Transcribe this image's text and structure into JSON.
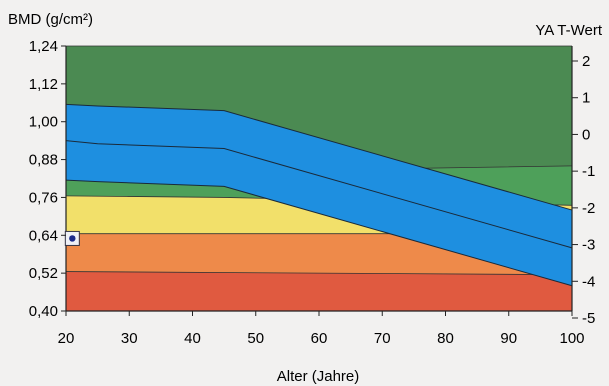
{
  "chart_data": {
    "type": "area",
    "y_label": "BMD (g/cm²)",
    "y2_label": "YA T-Wert",
    "x_label": "Alter (Jahre)",
    "x_ticks": [
      "20",
      "30",
      "40",
      "50",
      "60",
      "70",
      "80",
      "90",
      "100"
    ],
    "y_ticks": [
      "0,40",
      "0,52",
      "0,64",
      "0,76",
      "0,88",
      "1,00",
      "1,12",
      "1,24"
    ],
    "y2_ticks": [
      "-5",
      "-4",
      "-3",
      "-2",
      "-1",
      "0",
      "1",
      "2"
    ],
    "x_range": [
      20,
      100
    ],
    "y_range": [
      0.4,
      1.24
    ],
    "zones": [
      {
        "name": "red",
        "color": "#e05a40",
        "top": [
          [
            20,
            0.525
          ],
          [
            100,
            0.515
          ]
        ]
      },
      {
        "name": "orange",
        "color": "#ee8a4a",
        "top": [
          [
            20,
            0.645
          ],
          [
            100,
            0.645
          ]
        ]
      },
      {
        "name": "yellow",
        "color": "#f2e06a",
        "top": [
          [
            20,
            0.765
          ],
          [
            45,
            0.76
          ],
          [
            100,
            0.735
          ]
        ]
      },
      {
        "name": "light-green",
        "color": "#4ea05a",
        "top": [
          [
            20,
            0.82
          ],
          [
            45,
            0.815
          ],
          [
            68,
            0.85
          ],
          [
            100,
            0.86
          ]
        ]
      },
      {
        "name": "dark-green",
        "color": "#4b8a52",
        "top": [
          [
            20,
            1.24
          ],
          [
            100,
            1.24
          ]
        ]
      }
    ],
    "reference_band": {
      "color": "#1e8fe0",
      "upper": [
        [
          20,
          1.055
        ],
        [
          25,
          1.05
        ],
        [
          45,
          1.035
        ],
        [
          100,
          0.72
        ]
      ],
      "middle": [
        [
          20,
          0.94
        ],
        [
          25,
          0.93
        ],
        [
          45,
          0.915
        ],
        [
          100,
          0.6
        ]
      ],
      "lower": [
        [
          20,
          0.815
        ],
        [
          25,
          0.81
        ],
        [
          45,
          0.795
        ],
        [
          100,
          0.48
        ]
      ]
    },
    "patient_point": {
      "x": 21,
      "y": 0.63
    }
  }
}
